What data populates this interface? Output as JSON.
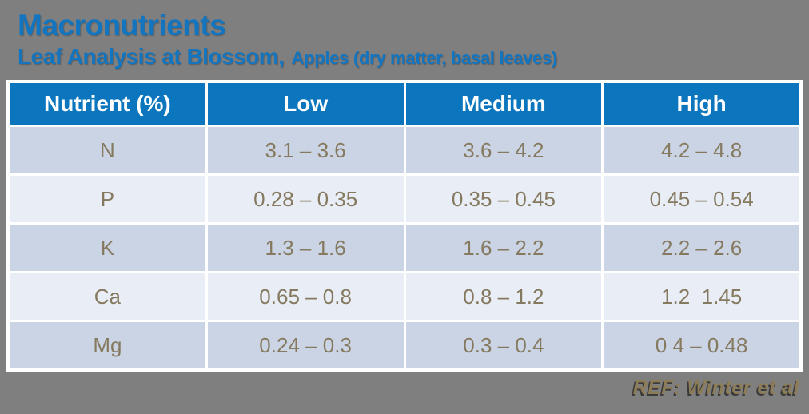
{
  "slide": {
    "title": "Macronutrients",
    "subtitle_main": "Leaf Analysis at Blossom,",
    "subtitle_detail": "Apples (dry matter, basal leaves)",
    "reference": "REF: Winter et al"
  },
  "colors": {
    "background_gray": "#7f7f7f",
    "heading_blue": "#1375c0",
    "table_header_blue": "#0b76bd",
    "table_header_text": "#ffffff",
    "row_stripe_dark": "#cbd4e4",
    "row_stripe_light": "#e9edf5",
    "cell_text_brown": "#857a5f",
    "reference_tan": "#8d7c58",
    "table_border": "#ffffff"
  },
  "table": {
    "headers": [
      "Nutrient (%)",
      "Low",
      "Medium",
      "High"
    ],
    "rows": [
      {
        "nutrient": "N",
        "low": "3.1 – 3.6",
        "medium": "3.6 – 4.2",
        "high": "4.2 – 4.8"
      },
      {
        "nutrient": "P",
        "low": "0.28 – 0.35",
        "medium": "0.35 – 0.45",
        "high": "0.45 – 0.54"
      },
      {
        "nutrient": "K",
        "low": "1.3 – 1.6",
        "medium": "1.6 – 2.2",
        "high": "2.2 – 2.6"
      },
      {
        "nutrient": "Ca",
        "low": "0.65 – 0.8",
        "medium": "0.8 – 1.2",
        "high": "1.2  1.45"
      },
      {
        "nutrient": "Mg",
        "low": "0.24 – 0.3",
        "medium": "0.3 – 0.4",
        "high": "0 4 – 0.48"
      }
    ]
  },
  "chart_data": {
    "type": "table",
    "title": "Macronutrients — Leaf Analysis at Blossom, Apples (dry matter, basal leaves)",
    "columns": [
      "Nutrient (%)",
      "Low",
      "Medium",
      "High"
    ],
    "rows": [
      [
        "N",
        "3.1 – 3.6",
        "3.6 – 4.2",
        "4.2 – 4.8"
      ],
      [
        "P",
        "0.28 – 0.35",
        "0.35 – 0.45",
        "0.45 – 0.54"
      ],
      [
        "K",
        "1.3 – 1.6",
        "1.6 – 2.2",
        "2.2 – 2.6"
      ],
      [
        "Ca",
        "0.65 – 0.8",
        "0.8 – 1.2",
        "1.2  1.45"
      ],
      [
        "Mg",
        "0.24 – 0.3",
        "0.3 – 0.4",
        "0 4 – 0.48"
      ]
    ]
  }
}
